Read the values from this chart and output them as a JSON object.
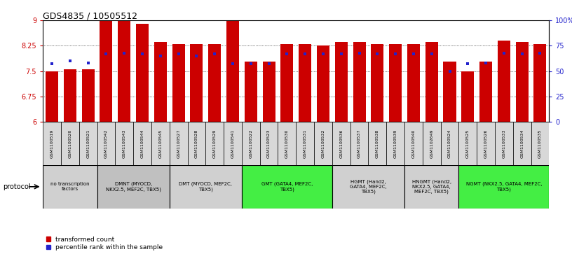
{
  "title": "GDS4835 / 10505512",
  "samples": [
    "GSM1100519",
    "GSM1100520",
    "GSM1100521",
    "GSM1100542",
    "GSM1100543",
    "GSM1100544",
    "GSM1100545",
    "GSM1100527",
    "GSM1100528",
    "GSM1100529",
    "GSM1100541",
    "GSM1100522",
    "GSM1100523",
    "GSM1100530",
    "GSM1100531",
    "GSM1100532",
    "GSM1100536",
    "GSM1100537",
    "GSM1100538",
    "GSM1100539",
    "GSM1100540",
    "GSM1102649",
    "GSM1100524",
    "GSM1100525",
    "GSM1100526",
    "GSM1100533",
    "GSM1100534",
    "GSM1100535"
  ],
  "bar_heights": [
    7.5,
    7.55,
    7.55,
    9.0,
    9.0,
    8.9,
    8.35,
    8.3,
    8.3,
    8.3,
    9.0,
    7.78,
    7.78,
    8.3,
    8.3,
    8.25,
    8.35,
    8.35,
    8.3,
    8.3,
    8.3,
    8.35,
    7.78,
    7.5,
    7.78,
    8.4,
    8.35,
    8.3
  ],
  "percentile_values": [
    57,
    60,
    58,
    67,
    68,
    67,
    65,
    67,
    65,
    67,
    57,
    57,
    57,
    67,
    67,
    67,
    67,
    68,
    67,
    67,
    67,
    67,
    50,
    57,
    58,
    68,
    67,
    68
  ],
  "ylim_left": [
    6.0,
    9.0
  ],
  "ylim_right": [
    0,
    100
  ],
  "yticks_left": [
    6.0,
    6.75,
    7.5,
    8.25,
    9.0
  ],
  "yticks_right": [
    0,
    25,
    50,
    75,
    100
  ],
  "ytick_labels_left": [
    "6",
    "6.75",
    "7.5",
    "8.25",
    "9"
  ],
  "ytick_labels_right": [
    "0",
    "25",
    "50",
    "75",
    "100%"
  ],
  "bar_color": "#CC0000",
  "percentile_color": "#2222CC",
  "groups": [
    {
      "label": "no transcription\nfactors",
      "start": 0,
      "end": 3,
      "color": "#d0d0d0"
    },
    {
      "label": "DMNT (MYOCD,\nNKX2.5, MEF2C, TBX5)",
      "start": 3,
      "end": 7,
      "color": "#c0c0c0"
    },
    {
      "label": "DMT (MYOCD, MEF2C,\nTBX5)",
      "start": 7,
      "end": 11,
      "color": "#d0d0d0"
    },
    {
      "label": "GMT (GATA4, MEF2C,\nTBX5)",
      "start": 11,
      "end": 16,
      "color": "#44ee44"
    },
    {
      "label": "HGMT (Hand2,\nGATA4, MEF2C,\nTBX5)",
      "start": 16,
      "end": 20,
      "color": "#d0d0d0"
    },
    {
      "label": "HNGMT (Hand2,\nNKX2.5, GATA4,\nMEF2C, TBX5)",
      "start": 20,
      "end": 23,
      "color": "#d0d0d0"
    },
    {
      "label": "NGMT (NKX2.5, GATA4, MEF2C,\nTBX5)",
      "start": 23,
      "end": 28,
      "color": "#44ee44"
    }
  ],
  "protocol_label": "protocol"
}
